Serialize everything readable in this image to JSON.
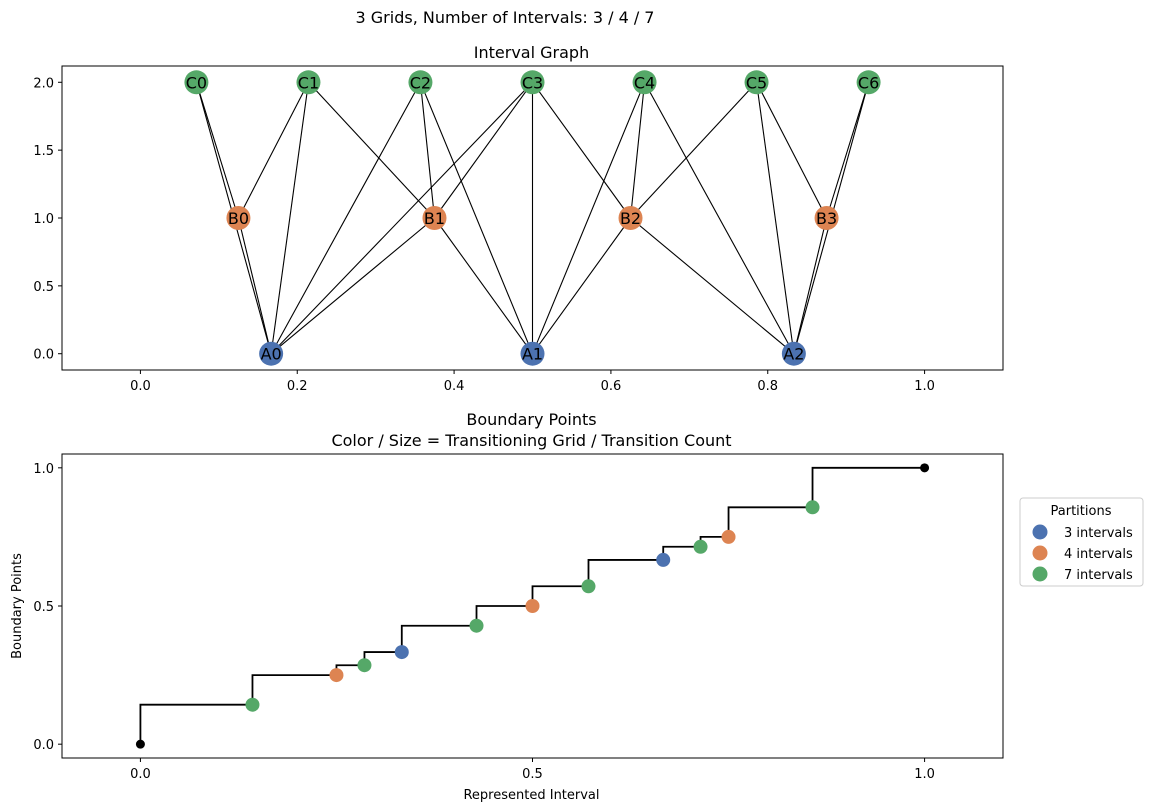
{
  "suptitle": "3 Grids, Number of Intervals: 3 / 4 / 7",
  "colors": {
    "grid_3": "#4c72b0",
    "grid_4": "#dd8452",
    "grid_7": "#55a868",
    "edge": "#000000"
  },
  "chart_data": [
    {
      "type": "network",
      "title": "Interval Graph",
      "xlim": [
        -0.1,
        1.1
      ],
      "ylim": [
        -0.12,
        2.12
      ],
      "xticks": [
        "0.0",
        "0.2",
        "0.4",
        "0.6",
        "0.8",
        "1.0"
      ],
      "xtick_values": [
        0.0,
        0.2,
        0.4,
        0.6,
        0.8,
        1.0
      ],
      "yticks": [
        "0.0",
        "0.5",
        "1.0",
        "1.5",
        "2.0"
      ],
      "ytick_values": [
        0.0,
        0.5,
        1.0,
        1.5,
        2.0
      ],
      "nodes": [
        {
          "id": "A0",
          "x": 0.1667,
          "y": 0,
          "group": "grid_3"
        },
        {
          "id": "A1",
          "x": 0.5,
          "y": 0,
          "group": "grid_3"
        },
        {
          "id": "A2",
          "x": 0.8333,
          "y": 0,
          "group": "grid_3"
        },
        {
          "id": "B0",
          "x": 0.125,
          "y": 1,
          "group": "grid_4"
        },
        {
          "id": "B1",
          "x": 0.375,
          "y": 1,
          "group": "grid_4"
        },
        {
          "id": "B2",
          "x": 0.625,
          "y": 1,
          "group": "grid_4"
        },
        {
          "id": "B3",
          "x": 0.875,
          "y": 1,
          "group": "grid_4"
        },
        {
          "id": "C0",
          "x": 0.0714,
          "y": 2,
          "group": "grid_7"
        },
        {
          "id": "C1",
          "x": 0.2143,
          "y": 2,
          "group": "grid_7"
        },
        {
          "id": "C2",
          "x": 0.3571,
          "y": 2,
          "group": "grid_7"
        },
        {
          "id": "C3",
          "x": 0.5,
          "y": 2,
          "group": "grid_7"
        },
        {
          "id": "C4",
          "x": 0.6429,
          "y": 2,
          "group": "grid_7"
        },
        {
          "id": "C5",
          "x": 0.7857,
          "y": 2,
          "group": "grid_7"
        },
        {
          "id": "C6",
          "x": 0.9286,
          "y": 2,
          "group": "grid_7"
        }
      ],
      "edges": [
        [
          "A0",
          "B0"
        ],
        [
          "A0",
          "B1"
        ],
        [
          "A0",
          "C0"
        ],
        [
          "A0",
          "C1"
        ],
        [
          "A0",
          "C2"
        ],
        [
          "A0",
          "C3"
        ],
        [
          "A1",
          "B1"
        ],
        [
          "A1",
          "B2"
        ],
        [
          "A1",
          "C2"
        ],
        [
          "A1",
          "C3"
        ],
        [
          "A1",
          "C4"
        ],
        [
          "A2",
          "B2"
        ],
        [
          "A2",
          "B3"
        ],
        [
          "A2",
          "C4"
        ],
        [
          "A2",
          "C5"
        ],
        [
          "A2",
          "C6"
        ],
        [
          "B0",
          "C0"
        ],
        [
          "B0",
          "C1"
        ],
        [
          "B1",
          "C1"
        ],
        [
          "B1",
          "C2"
        ],
        [
          "B1",
          "C3"
        ],
        [
          "B2",
          "C3"
        ],
        [
          "B2",
          "C4"
        ],
        [
          "B2",
          "C5"
        ],
        [
          "B3",
          "C5"
        ],
        [
          "B3",
          "C6"
        ]
      ]
    },
    {
      "type": "step_scatter",
      "title": "Boundary Points",
      "subtitle": "Color / Size = Transitioning Grid / Transition Count",
      "xlabel": "Represented Interval",
      "ylabel": "Boundary Points",
      "xlim": [
        -0.1,
        1.1
      ],
      "ylim": [
        -0.05,
        1.05
      ],
      "xticks": [
        "0.0",
        "0.5",
        "1.0"
      ],
      "xtick_values": [
        0.0,
        0.5,
        1.0
      ],
      "yticks": [
        "0.0",
        "0.5",
        "1.0"
      ],
      "ytick_values": [
        0.0,
        0.5,
        1.0
      ],
      "step_points": [
        [
          0.0,
          0.0
        ],
        [
          0.1429,
          0.1429
        ],
        [
          0.25,
          0.25
        ],
        [
          0.2857,
          0.2857
        ],
        [
          0.3333,
          0.3333
        ],
        [
          0.4286,
          0.4286
        ],
        [
          0.5,
          0.5
        ],
        [
          0.5714,
          0.5714
        ],
        [
          0.6667,
          0.6667
        ],
        [
          0.7143,
          0.7143
        ],
        [
          0.75,
          0.75
        ],
        [
          0.8571,
          0.8571
        ],
        [
          1.0,
          1.0
        ]
      ],
      "endpoints": [
        [
          0.0,
          0.0
        ],
        [
          1.0,
          1.0
        ]
      ],
      "series": [
        {
          "name": "3 intervals",
          "group": "grid_3",
          "x": [
            0.3333,
            0.6667
          ],
          "y": [
            0.3333,
            0.6667
          ]
        },
        {
          "name": "4 intervals",
          "group": "grid_4",
          "x": [
            0.25,
            0.5,
            0.75
          ],
          "y": [
            0.25,
            0.5,
            0.75
          ]
        },
        {
          "name": "7 intervals",
          "group": "grid_7",
          "x": [
            0.1429,
            0.2857,
            0.4286,
            0.5714,
            0.7143,
            0.8571
          ],
          "y": [
            0.1429,
            0.2857,
            0.4286,
            0.5714,
            0.7143,
            0.8571
          ]
        }
      ],
      "legend": {
        "title": "Partitions",
        "placement": "outside-right"
      }
    }
  ]
}
